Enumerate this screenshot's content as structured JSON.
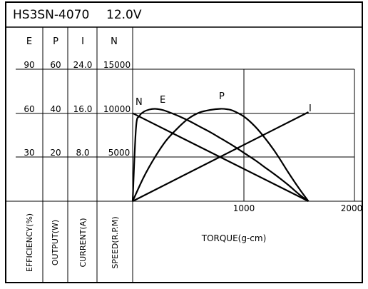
{
  "chart_data": {
    "type": "line",
    "title": "HS3SN-4070",
    "subtitle": "12.0V",
    "xlabel": "TORQUE(g-cm)",
    "x_ticks": [
      "1000",
      "2000"
    ],
    "xlim": [
      0,
      2000
    ],
    "grid": true,
    "y_axes": [
      {
        "header": "E",
        "label": "EFFICIENCY(%)",
        "ticks": [
          "30",
          "60",
          "90"
        ],
        "ylim": [
          0,
          90
        ]
      },
      {
        "header": "P",
        "label": "OUTPUT(W)",
        "ticks": [
          "20",
          "40",
          "60"
        ],
        "ylim": [
          0,
          60
        ]
      },
      {
        "header": "I",
        "label": "CURRENT(A)",
        "ticks": [
          "8.0",
          "16.0",
          "24.0"
        ],
        "ylim": [
          0,
          24
        ]
      },
      {
        "header": "N",
        "label": "SPEED(R.P.M)",
        "ticks": [
          "5000",
          "10000",
          "15000"
        ],
        "ylim": [
          0,
          15000
        ]
      }
    ],
    "series": [
      {
        "name": "N",
        "axis": "N",
        "x": [
          0,
          1580
        ],
        "y": [
          10000,
          0
        ]
      },
      {
        "name": "E",
        "axis": "E",
        "x": [
          0,
          30,
          60,
          100,
          150,
          200,
          250,
          300,
          400,
          500,
          600,
          700,
          800,
          900,
          1000,
          1100,
          1200,
          1300,
          1400,
          1500,
          1580
        ],
        "y": [
          0,
          50,
          58,
          61,
          62.5,
          63,
          62.5,
          61.5,
          58.5,
          55,
          51,
          47,
          42.5,
          38,
          33,
          28,
          22.5,
          17,
          11,
          4.5,
          0
        ]
      },
      {
        "name": "P",
        "axis": "P",
        "x": [
          0,
          100,
          200,
          300,
          400,
          500,
          600,
          700,
          790,
          850,
          900,
          1000,
          1100,
          1200,
          1300,
          1400,
          1500,
          1580
        ],
        "y": [
          0,
          11,
          20,
          27.5,
          33,
          37.5,
          40.3,
          41.5,
          42,
          41.8,
          41.2,
          38.5,
          34,
          28,
          21,
          13,
          5.5,
          0
        ]
      },
      {
        "name": "I",
        "axis": "I",
        "x": [
          0,
          1580
        ],
        "y": [
          0,
          16.2
        ]
      }
    ]
  }
}
